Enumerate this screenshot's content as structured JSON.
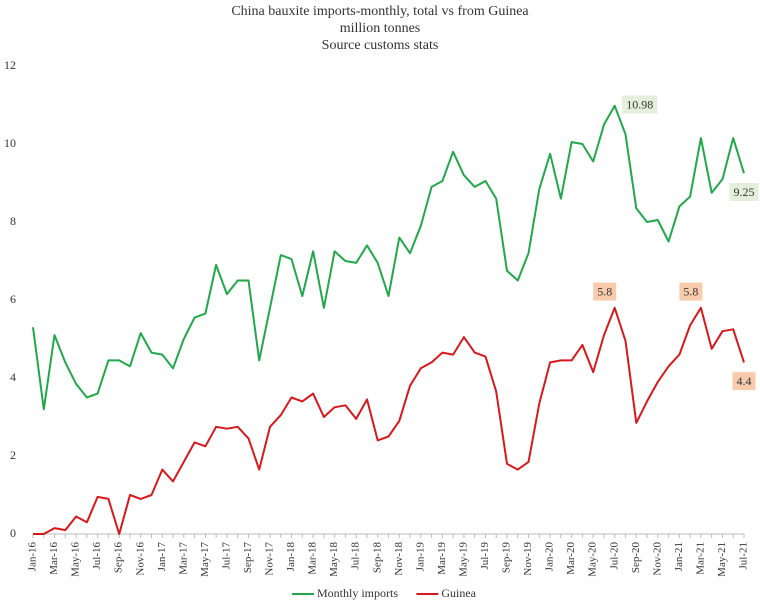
{
  "chart_data": {
    "type": "line",
    "title": "China bauxite imports-monthly, total vs from Guinea",
    "subtitle": "million tonnes",
    "source": "Source customs stats",
    "categories": [
      "Jan-16",
      null,
      "Mar-16",
      null,
      "May-16",
      null,
      "Jul-16",
      null,
      "Sep-16",
      null,
      "Nov-16",
      null,
      "Jan-17",
      null,
      "Mar-17",
      null,
      "May-17",
      null,
      "Jul-17",
      null,
      "Sep-17",
      null,
      "Nov-17",
      null,
      "Jan-18",
      null,
      "Mar-18",
      null,
      "May-18",
      null,
      "Jul-18",
      null,
      "Sep-18",
      null,
      "Nov-18",
      null,
      "Jan-19",
      null,
      "Mar-19",
      null,
      "May-19",
      null,
      "Jul-19",
      null,
      "Sep-19",
      null,
      "Nov-19",
      null,
      "Jan-20",
      null,
      "Mar-20",
      null,
      "May-20",
      null,
      "Jul-20",
      null,
      "Sep-20",
      null,
      "Nov-20",
      null,
      "Jan-21",
      null,
      "Mar-21",
      null,
      "May-21",
      null,
      "Jul-21"
    ],
    "series": [
      {
        "name": "Monthly imports",
        "color": "#22a84a",
        "label_bg": "#e2efda",
        "values": [
          5.3,
          3.2,
          5.1,
          4.4,
          3.85,
          3.5,
          3.6,
          4.45,
          4.45,
          4.3,
          5.15,
          4.65,
          4.6,
          4.25,
          5.0,
          5.55,
          5.65,
          6.9,
          6.15,
          6.5,
          6.5,
          4.45,
          5.8,
          7.15,
          7.05,
          6.1,
          7.25,
          5.8,
          7.25,
          7.0,
          6.95,
          7.4,
          6.95,
          6.1,
          7.6,
          7.2,
          7.9,
          8.9,
          9.05,
          9.8,
          9.2,
          8.9,
          9.05,
          8.6,
          6.75,
          6.5,
          7.2,
          8.85,
          9.75,
          8.6,
          10.05,
          10.0,
          9.55,
          10.5,
          10.98,
          10.25,
          8.35,
          8.0,
          8.05,
          7.5,
          8.4,
          8.65,
          10.15,
          8.75,
          9.1,
          10.15,
          9.25
        ],
        "value_labels": [
          null,
          null,
          null,
          null,
          null,
          null,
          null,
          null,
          null,
          null,
          null,
          null,
          null,
          null,
          null,
          null,
          null,
          null,
          null,
          null,
          null,
          null,
          null,
          null,
          null,
          null,
          null,
          null,
          null,
          null,
          null,
          null,
          null,
          null,
          null,
          null,
          null,
          null,
          null,
          null,
          null,
          null,
          null,
          null,
          null,
          null,
          null,
          null,
          null,
          null,
          null,
          null,
          null,
          null,
          "10.98",
          null,
          null,
          null,
          null,
          null,
          null,
          null,
          null,
          null,
          null,
          null,
          "9.25"
        ]
      },
      {
        "name": "Guinea",
        "color": "#d7191c",
        "label_bg": "#f8cbad",
        "values": [
          0,
          0,
          0.15,
          0.1,
          0.45,
          0.3,
          0.95,
          0.9,
          0,
          1.0,
          0.9,
          1.0,
          1.65,
          1.35,
          1.85,
          2.35,
          2.25,
          2.75,
          2.7,
          2.75,
          2.45,
          1.65,
          2.75,
          3.05,
          3.5,
          3.4,
          3.6,
          3.0,
          3.25,
          3.3,
          2.95,
          3.45,
          2.4,
          2.5,
          2.9,
          3.8,
          4.25,
          4.4,
          4.65,
          4.6,
          5.05,
          4.65,
          4.55,
          3.65,
          1.8,
          1.65,
          1.85,
          3.35,
          4.4,
          4.45,
          4.45,
          4.85,
          4.15,
          5.1,
          5.8,
          4.95,
          2.85,
          3.4,
          3.9,
          4.3,
          4.6,
          5.35,
          5.8,
          4.75,
          5.2,
          5.25,
          4.4
        ],
        "value_labels": [
          null,
          null,
          null,
          null,
          null,
          null,
          null,
          null,
          null,
          null,
          null,
          null,
          null,
          null,
          null,
          null,
          null,
          null,
          null,
          null,
          null,
          null,
          null,
          null,
          null,
          null,
          null,
          null,
          null,
          null,
          null,
          null,
          null,
          null,
          null,
          null,
          null,
          null,
          null,
          null,
          null,
          null,
          null,
          null,
          null,
          null,
          null,
          null,
          null,
          null,
          null,
          null,
          null,
          null,
          "5.8",
          null,
          null,
          null,
          null,
          null,
          null,
          null,
          "5.8",
          null,
          null,
          null,
          "4.4"
        ]
      }
    ],
    "ylim": [
      0,
      12
    ],
    "yticks": [
      0,
      2,
      4,
      6,
      8,
      10,
      12
    ],
    "grid": false,
    "legend": "bottom"
  }
}
